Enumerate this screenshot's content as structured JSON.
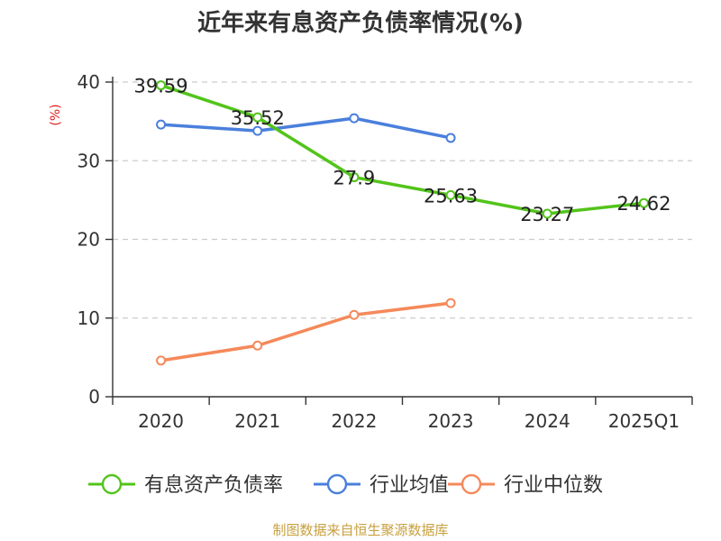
{
  "chart_data": {
    "type": "line",
    "title": "近年来有息资产负债率情况(%)",
    "ylabel": "(%)",
    "categories": [
      "2020",
      "2021",
      "2022",
      "2023",
      "2024",
      "2025Q1"
    ],
    "ylim": [
      0,
      40
    ],
    "yticks": [
      0,
      10,
      20,
      30,
      40
    ],
    "grid": true,
    "legend_position": "bottom",
    "series": [
      {
        "name": "有息资产负债率",
        "color": "#52c41a",
        "values": [
          39.59,
          35.52,
          27.9,
          25.63,
          23.27,
          24.62
        ],
        "labels": [
          "39.59",
          "35.52",
          "27.9",
          "25.63",
          "23.27",
          "24.62"
        ]
      },
      {
        "name": "行业均值",
        "color": "#4a7fdc",
        "values": [
          34.6,
          33.8,
          35.4,
          32.9,
          null,
          null
        ]
      },
      {
        "name": "行业中位数",
        "color": "#f5895a",
        "values": [
          4.6,
          6.5,
          10.4,
          11.9,
          null,
          null
        ]
      }
    ]
  },
  "source": {
    "text": "制图数据来自恒生聚源数据库",
    "color": "#c8a040"
  },
  "ylabel_color": "#dd2222"
}
